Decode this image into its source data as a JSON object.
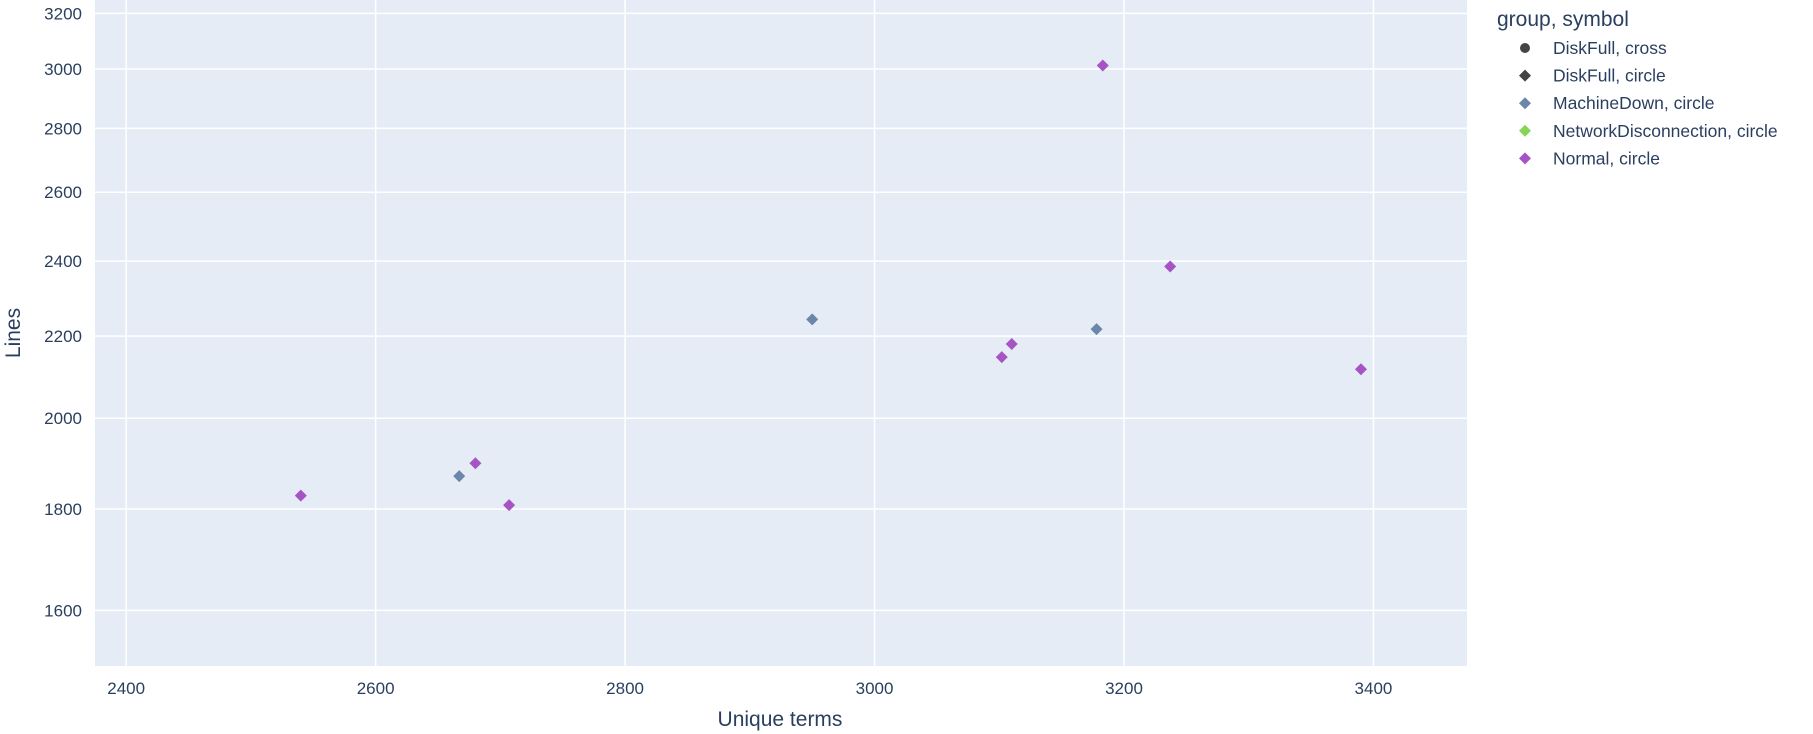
{
  "chart_data": {
    "type": "scatter",
    "xlabel": "Unique terms",
    "ylabel": "Lines",
    "xlim": [
      2375,
      3475
    ],
    "ylim": [
      1500,
      3250
    ],
    "y_scale": "log",
    "x_ticks": [
      2400,
      2600,
      2800,
      3000,
      3200,
      3400
    ],
    "y_ticks": [
      1600,
      1800,
      2000,
      2200,
      2400,
      2600,
      2800,
      3000,
      3200
    ],
    "grid": true,
    "legend_title": "group, symbol",
    "legend_position": "right",
    "series": [
      {
        "name": "DiskFull, cross",
        "color": "#444444",
        "marker": "circle",
        "x": [],
        "y": []
      },
      {
        "name": "DiskFull, circle",
        "color": "#444444",
        "marker": "diamond",
        "x": [],
        "y": []
      },
      {
        "name": "MachineDown, circle",
        "color": "#6a86ab",
        "marker": "diamond",
        "x": [
          2667,
          2950,
          3178
        ],
        "y": [
          1870,
          2243,
          2218
        ]
      },
      {
        "name": "NetworkDisconnection, circle",
        "color": "#88d35a",
        "marker": "diamond",
        "x": [],
        "y": []
      },
      {
        "name": "Normal, circle",
        "color": "#a653c4",
        "marker": "diamond",
        "x": [
          2540,
          2680,
          2707,
          3102,
          3110,
          3183,
          3237,
          3390
        ],
        "y": [
          1828,
          1898,
          1808,
          2147,
          2180,
          3012,
          2385,
          2117
        ]
      }
    ]
  }
}
